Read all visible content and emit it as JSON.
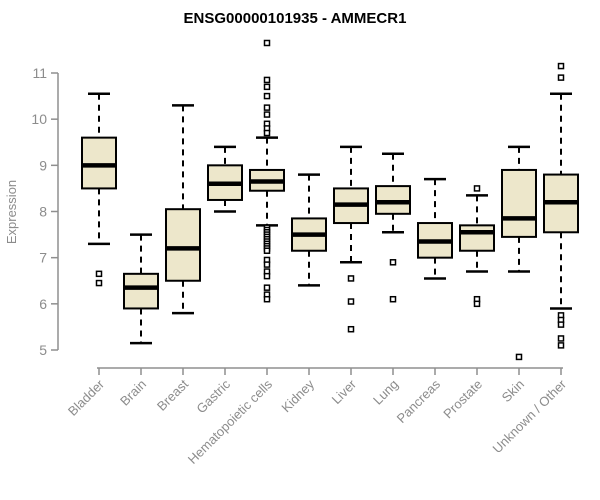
{
  "chart_data": {
    "type": "boxplot",
    "title": "ENSG00000101935 - AMMECR1",
    "ylabel": "Expression",
    "xlabel": "",
    "ylim": [
      5,
      11
    ],
    "yticks": [
      5,
      6,
      7,
      8,
      9,
      10,
      11
    ],
    "grid": false,
    "legend": "none",
    "box_fill": "#ede7cb",
    "box_stroke": "#000000",
    "axis_color": "#8f8f8f",
    "label_color": "#8c8c8c",
    "categories": [
      "Bladder",
      "Brain",
      "Breast",
      "Gastric",
      "Hematopoietic cells",
      "Kidney",
      "Liver",
      "Lung",
      "Pancreas",
      "Prostate",
      "Skin",
      "Unknown / Other"
    ],
    "series": [
      {
        "name": "Bladder",
        "whisker_low": 7.3,
        "q1": 8.5,
        "median": 9.0,
        "q3": 9.6,
        "whisker_high": 10.55,
        "outliers": [
          6.65,
          6.45
        ]
      },
      {
        "name": "Brain",
        "whisker_low": 5.15,
        "q1": 5.9,
        "median": 6.35,
        "q3": 6.65,
        "whisker_high": 7.5,
        "outliers": []
      },
      {
        "name": "Breast",
        "whisker_low": 5.8,
        "q1": 6.5,
        "median": 7.2,
        "q3": 8.05,
        "whisker_high": 10.3,
        "outliers": []
      },
      {
        "name": "Gastric",
        "whisker_low": 8.0,
        "q1": 8.25,
        "median": 8.6,
        "q3": 9.0,
        "whisker_high": 9.4,
        "outliers": []
      },
      {
        "name": "Hematopoietic cells",
        "whisker_low": 7.7,
        "q1": 8.45,
        "median": 8.65,
        "q3": 8.9,
        "whisker_high": 9.6,
        "outliers": [
          11.65,
          10.85,
          10.7,
          10.5,
          10.25,
          10.1,
          9.9,
          9.8,
          9.7,
          7.65,
          7.6,
          7.55,
          7.5,
          7.45,
          7.4,
          7.35,
          7.3,
          7.25,
          7.2,
          7.15,
          6.95,
          6.85,
          6.7,
          6.6,
          6.35,
          6.2,
          6.1
        ]
      },
      {
        "name": "Kidney",
        "whisker_low": 6.4,
        "q1": 7.15,
        "median": 7.5,
        "q3": 7.85,
        "whisker_high": 8.8,
        "outliers": []
      },
      {
        "name": "Liver",
        "whisker_low": 6.9,
        "q1": 7.75,
        "median": 8.15,
        "q3": 8.5,
        "whisker_high": 9.4,
        "outliers": [
          6.55,
          6.05,
          5.45
        ]
      },
      {
        "name": "Lung",
        "whisker_low": 7.55,
        "q1": 7.95,
        "median": 8.2,
        "q3": 8.55,
        "whisker_high": 9.25,
        "outliers": [
          6.9,
          6.1
        ]
      },
      {
        "name": "Pancreas",
        "whisker_low": 6.55,
        "q1": 7.0,
        "median": 7.35,
        "q3": 7.75,
        "whisker_high": 8.7,
        "outliers": []
      },
      {
        "name": "Prostate",
        "whisker_low": 6.7,
        "q1": 7.15,
        "median": 7.55,
        "q3": 7.7,
        "whisker_high": 8.35,
        "outliers": [
          8.5,
          6.1,
          6.0
        ]
      },
      {
        "name": "Skin",
        "whisker_low": 6.7,
        "q1": 7.45,
        "median": 7.85,
        "q3": 8.9,
        "whisker_high": 9.4,
        "outliers": [
          4.85
        ]
      },
      {
        "name": "Unknown / Other",
        "whisker_low": 5.9,
        "q1": 7.55,
        "median": 8.2,
        "q3": 8.8,
        "whisker_high": 10.55,
        "outliers": [
          11.15,
          10.9,
          5.75,
          5.65,
          5.55,
          5.25,
          5.1
        ]
      }
    ]
  }
}
